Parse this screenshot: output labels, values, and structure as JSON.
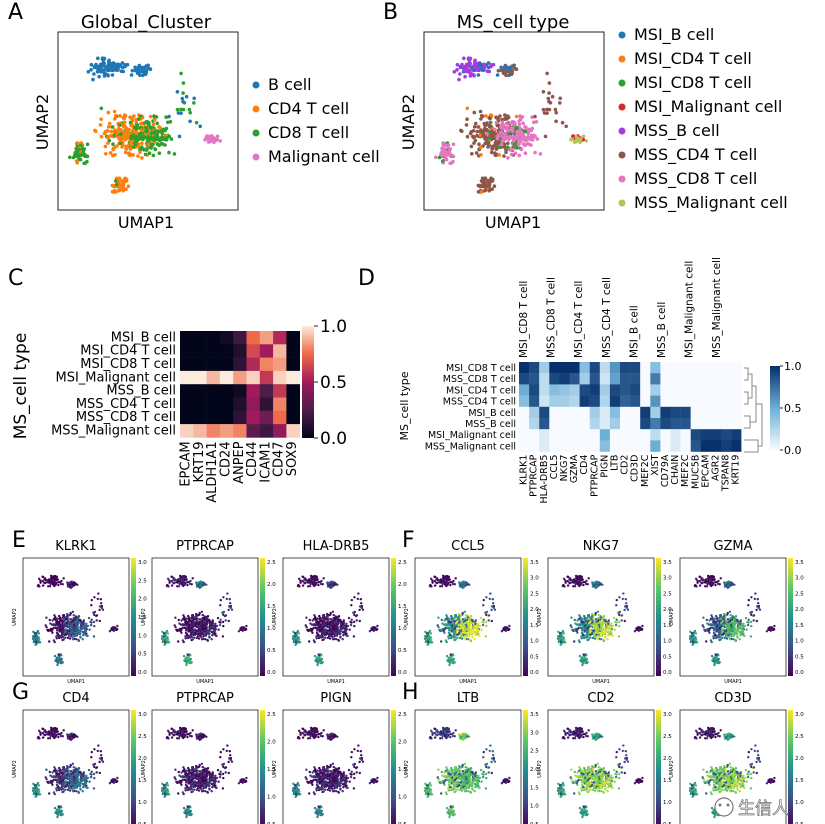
{
  "colors": {
    "b_cell": "#1f77b4",
    "cd4": "#ff7f0e",
    "cd8": "#2ca02c",
    "malignant": "#e377c2",
    "msi_malignant": "#d62728",
    "mss_b": "#a53ce0",
    "mss_cd4": "#8c564b",
    "mss_malig": "#b5c25a"
  },
  "panels": {
    "A": {
      "letter": "A",
      "title": "Global_Cluster",
      "xlabel": "UMAP1",
      "ylabel": "UMAP2",
      "legend": [
        {
          "label": "B cell",
          "color": "#1f77b4"
        },
        {
          "label": "CD4 T cell",
          "color": "#ff7f0e"
        },
        {
          "label": "CD8 T cell",
          "color": "#2ca02c"
        },
        {
          "label": "Malignant cell",
          "color": "#e377c2"
        }
      ]
    },
    "B": {
      "letter": "B",
      "title": "MS_cell type",
      "xlabel": "UMAP1",
      "ylabel": "UMAP2",
      "legend": [
        {
          "label": "MSI_B cell",
          "color": "#1f77b4"
        },
        {
          "label": "MSI_CD4 T cell",
          "color": "#ff7f0e"
        },
        {
          "label": "MSI_CD8 T cell",
          "color": "#2ca02c"
        },
        {
          "label": "MSI_Malignant cell",
          "color": "#d62728"
        },
        {
          "label": "MSS_B cell",
          "color": "#a53ce0"
        },
        {
          "label": "MSS_CD4 T cell",
          "color": "#8c564b"
        },
        {
          "label": "MSS_CD8 T cell",
          "color": "#e377c2"
        },
        {
          "label": "MSS_Malignant cell",
          "color": "#b5c25a"
        }
      ]
    },
    "C": {
      "letter": "C",
      "ylabel": "MS_cell type"
    },
    "D": {
      "letter": "D",
      "ylabel": "MS_cell type"
    },
    "E": {
      "letter": "E",
      "genes": [
        "KLRK1",
        "PTPRCAP",
        "HLA-DRB5"
      ]
    },
    "F": {
      "letter": "F",
      "genes": [
        "CCL5",
        "NKG7",
        "GZMA"
      ]
    },
    "G": {
      "letter": "G",
      "genes": [
        "CD4",
        "PTPRCAP",
        "PIGN"
      ]
    },
    "H": {
      "letter": "H",
      "genes": [
        "LTB",
        "CD2",
        "CD3D"
      ]
    },
    "small_xlabel": "UMAP1",
    "small_ylabel": "UMAP2"
  },
  "watermark": {
    "text": "生信人"
  },
  "chart_data": [
    {
      "panel": "C",
      "type": "heatmap",
      "rows": [
        "MSI_B cell",
        "MSI_CD4 T cell",
        "MSI_CD8 T cell",
        "MSI_Malignant cell",
        "MSS_B cell",
        "MSS_CD4 T cell",
        "MSS_CD8 T cell",
        "MSS_Malignant cell"
      ],
      "columns": [
        "EPCAM",
        "KRT19",
        "ALDH1A1",
        "CD24",
        "ANPEP",
        "CD44",
        "ICAM1",
        "CD47",
        "SOX9"
      ],
      "values": [
        [
          0.0,
          0.0,
          0.0,
          0.05,
          0.2,
          0.75,
          0.85,
          0.55,
          0.0
        ],
        [
          0.0,
          0.0,
          0.0,
          0.0,
          0.1,
          0.65,
          0.5,
          0.9,
          0.0
        ],
        [
          0.0,
          0.0,
          0.0,
          0.0,
          0.15,
          0.55,
          0.8,
          0.85,
          0.0
        ],
        [
          1.0,
          1.0,
          0.9,
          1.0,
          0.85,
          0.95,
          0.6,
          0.95,
          1.0
        ],
        [
          0.0,
          0.0,
          0.0,
          0.0,
          0.05,
          0.5,
          0.25,
          0.6,
          0.0
        ],
        [
          0.0,
          0.0,
          0.0,
          0.0,
          0.1,
          0.45,
          0.15,
          0.8,
          0.0
        ],
        [
          0.0,
          0.0,
          0.0,
          0.0,
          0.15,
          0.5,
          0.35,
          0.75,
          0.0
        ],
        [
          0.95,
          0.9,
          0.8,
          0.85,
          0.8,
          0.3,
          0.2,
          0.45,
          0.95
        ]
      ],
      "colorbar": {
        "ticks": [
          "1.0",
          "0.5",
          "0.0"
        ]
      },
      "ylabel": "MS_cell type"
    },
    {
      "panel": "D",
      "type": "heatmap",
      "rows": [
        "MSI_CD8 T cell",
        "MSS_CD8 T cell",
        "MSI_CD4 T cell",
        "MSS_CD4 T cell",
        "MSI_B cell",
        "MSS_B cell",
        "MSI_Malignant cell",
        "MSS_Malignant cell"
      ],
      "top_labels": [
        "MSI_CD8 T cell",
        "MSS_CD8 T cell",
        "MSI_CD4 T cell",
        "MSS_CD4 T cell",
        "MSI_B cell",
        "MSS_B cell",
        "MSI_Malignant cell",
        "MSS_Malignant cell"
      ],
      "columns": [
        "KLRK1",
        "PTPRCAP",
        "HLA-DRB5",
        "CCL5",
        "NKG7",
        "GZMA",
        "CD4",
        "PTPRCAP",
        "PIGN",
        "LTB",
        "CD2",
        "CD3D",
        "MEF2C",
        "XIST",
        "CD79A",
        "CHAIN",
        "MEF2C",
        "MUC5B",
        "EPCAM",
        "AGR2",
        "TSPAN8",
        "KRT19"
      ],
      "values": [
        [
          1.0,
          0.9,
          0.3,
          1.0,
          1.0,
          1.0,
          0.4,
          0.9,
          0.2,
          0.6,
          0.9,
          0.9,
          0.0,
          0.4,
          0.0,
          0.0,
          0.0,
          0.0,
          0.0,
          0.0,
          0.0,
          0.0
        ],
        [
          0.9,
          0.85,
          0.2,
          0.9,
          0.95,
          0.85,
          0.3,
          0.85,
          0.15,
          0.55,
          0.85,
          0.85,
          0.0,
          0.7,
          0.0,
          0.0,
          0.0,
          0.0,
          0.0,
          0.0,
          0.0,
          0.0
        ],
        [
          0.5,
          0.9,
          0.2,
          0.4,
          0.35,
          0.3,
          0.9,
          0.95,
          0.3,
          0.9,
          0.85,
          0.9,
          0.0,
          0.3,
          0.0,
          0.0,
          0.0,
          0.0,
          0.0,
          0.0,
          0.0,
          0.0
        ],
        [
          0.4,
          0.85,
          0.15,
          0.3,
          0.3,
          0.25,
          0.95,
          0.9,
          0.25,
          0.95,
          0.8,
          0.85,
          0.0,
          0.6,
          0.0,
          0.0,
          0.0,
          0.0,
          0.0,
          0.0,
          0.0,
          0.0
        ],
        [
          0.0,
          0.3,
          0.9,
          0.0,
          0.0,
          0.0,
          0.0,
          0.3,
          0.1,
          0.4,
          0.0,
          0.0,
          0.95,
          0.3,
          0.95,
          0.9,
          0.9,
          0.0,
          0.0,
          0.0,
          0.0,
          0.0
        ],
        [
          0.0,
          0.25,
          0.85,
          0.0,
          0.0,
          0.0,
          0.0,
          0.25,
          0.1,
          0.3,
          0.0,
          0.0,
          0.9,
          0.7,
          0.9,
          0.85,
          0.85,
          0.0,
          0.0,
          0.0,
          0.0,
          0.0
        ],
        [
          0.0,
          0.0,
          0.1,
          0.0,
          0.0,
          0.0,
          0.0,
          0.0,
          0.5,
          0.0,
          0.0,
          0.0,
          0.0,
          0.2,
          0.0,
          0.1,
          0.0,
          0.9,
          0.95,
          0.95,
          0.9,
          0.95
        ],
        [
          0.0,
          0.0,
          0.1,
          0.0,
          0.0,
          0.0,
          0.0,
          0.0,
          0.4,
          0.0,
          0.0,
          0.0,
          0.0,
          0.5,
          0.0,
          0.1,
          0.0,
          0.85,
          1.0,
          1.0,
          0.95,
          1.0
        ]
      ],
      "colorbar": {
        "ticks": [
          "1.0",
          "0.5",
          "0.0"
        ]
      },
      "ylabel": "MS_cell type"
    },
    {
      "panel": "E-H",
      "type": "scatter",
      "xlabel": "UMAP1",
      "ylabel": "UMAP2",
      "colorbar_ticks": {
        "E1": [
          "3.0",
          "2.5",
          "2.0",
          "1.5",
          "1.0",
          "0.5",
          "0.0"
        ],
        "E2": [
          "2.5",
          "2.0",
          "1.5",
          "1.0",
          "0.5",
          "0.0"
        ],
        "E3": [
          "2.5",
          "2.0",
          "1.5",
          "1.0",
          "0.5",
          "0.0"
        ],
        "F1": [
          "3.5",
          "3.0",
          "2.5",
          "2.0",
          "1.5",
          "1.0",
          "0.5",
          "0.0"
        ],
        "F2": [
          "3.5",
          "3.0",
          "2.5",
          "2.0",
          "1.5",
          "1.0",
          "0.5",
          "0.0"
        ],
        "F3": [
          "3.5",
          "3.0",
          "2.5",
          "2.0",
          "1.5",
          "1.0",
          "0.5",
          "0.0"
        ],
        "G1": [
          "3.0",
          "2.5",
          "2.0",
          "1.5",
          "1.0",
          "0.5"
        ],
        "G2": [
          "2.5",
          "2.0",
          "1.5",
          "1.0",
          "0.5"
        ],
        "G3": [
          "2.5",
          "2.0",
          "1.5",
          "1.0",
          "0.5"
        ],
        "H1": [
          "3.5",
          "3.0",
          "2.5",
          "2.0",
          "1.5",
          "1.0",
          "0.5"
        ],
        "H2": [
          "3.0",
          "2.5",
          "2.0",
          "1.5",
          "1.0",
          "0.5"
        ],
        "H3": [
          "3.0",
          "2.5",
          "2.0",
          "1.5",
          "1.0",
          "0.5"
        ]
      }
    }
  ]
}
